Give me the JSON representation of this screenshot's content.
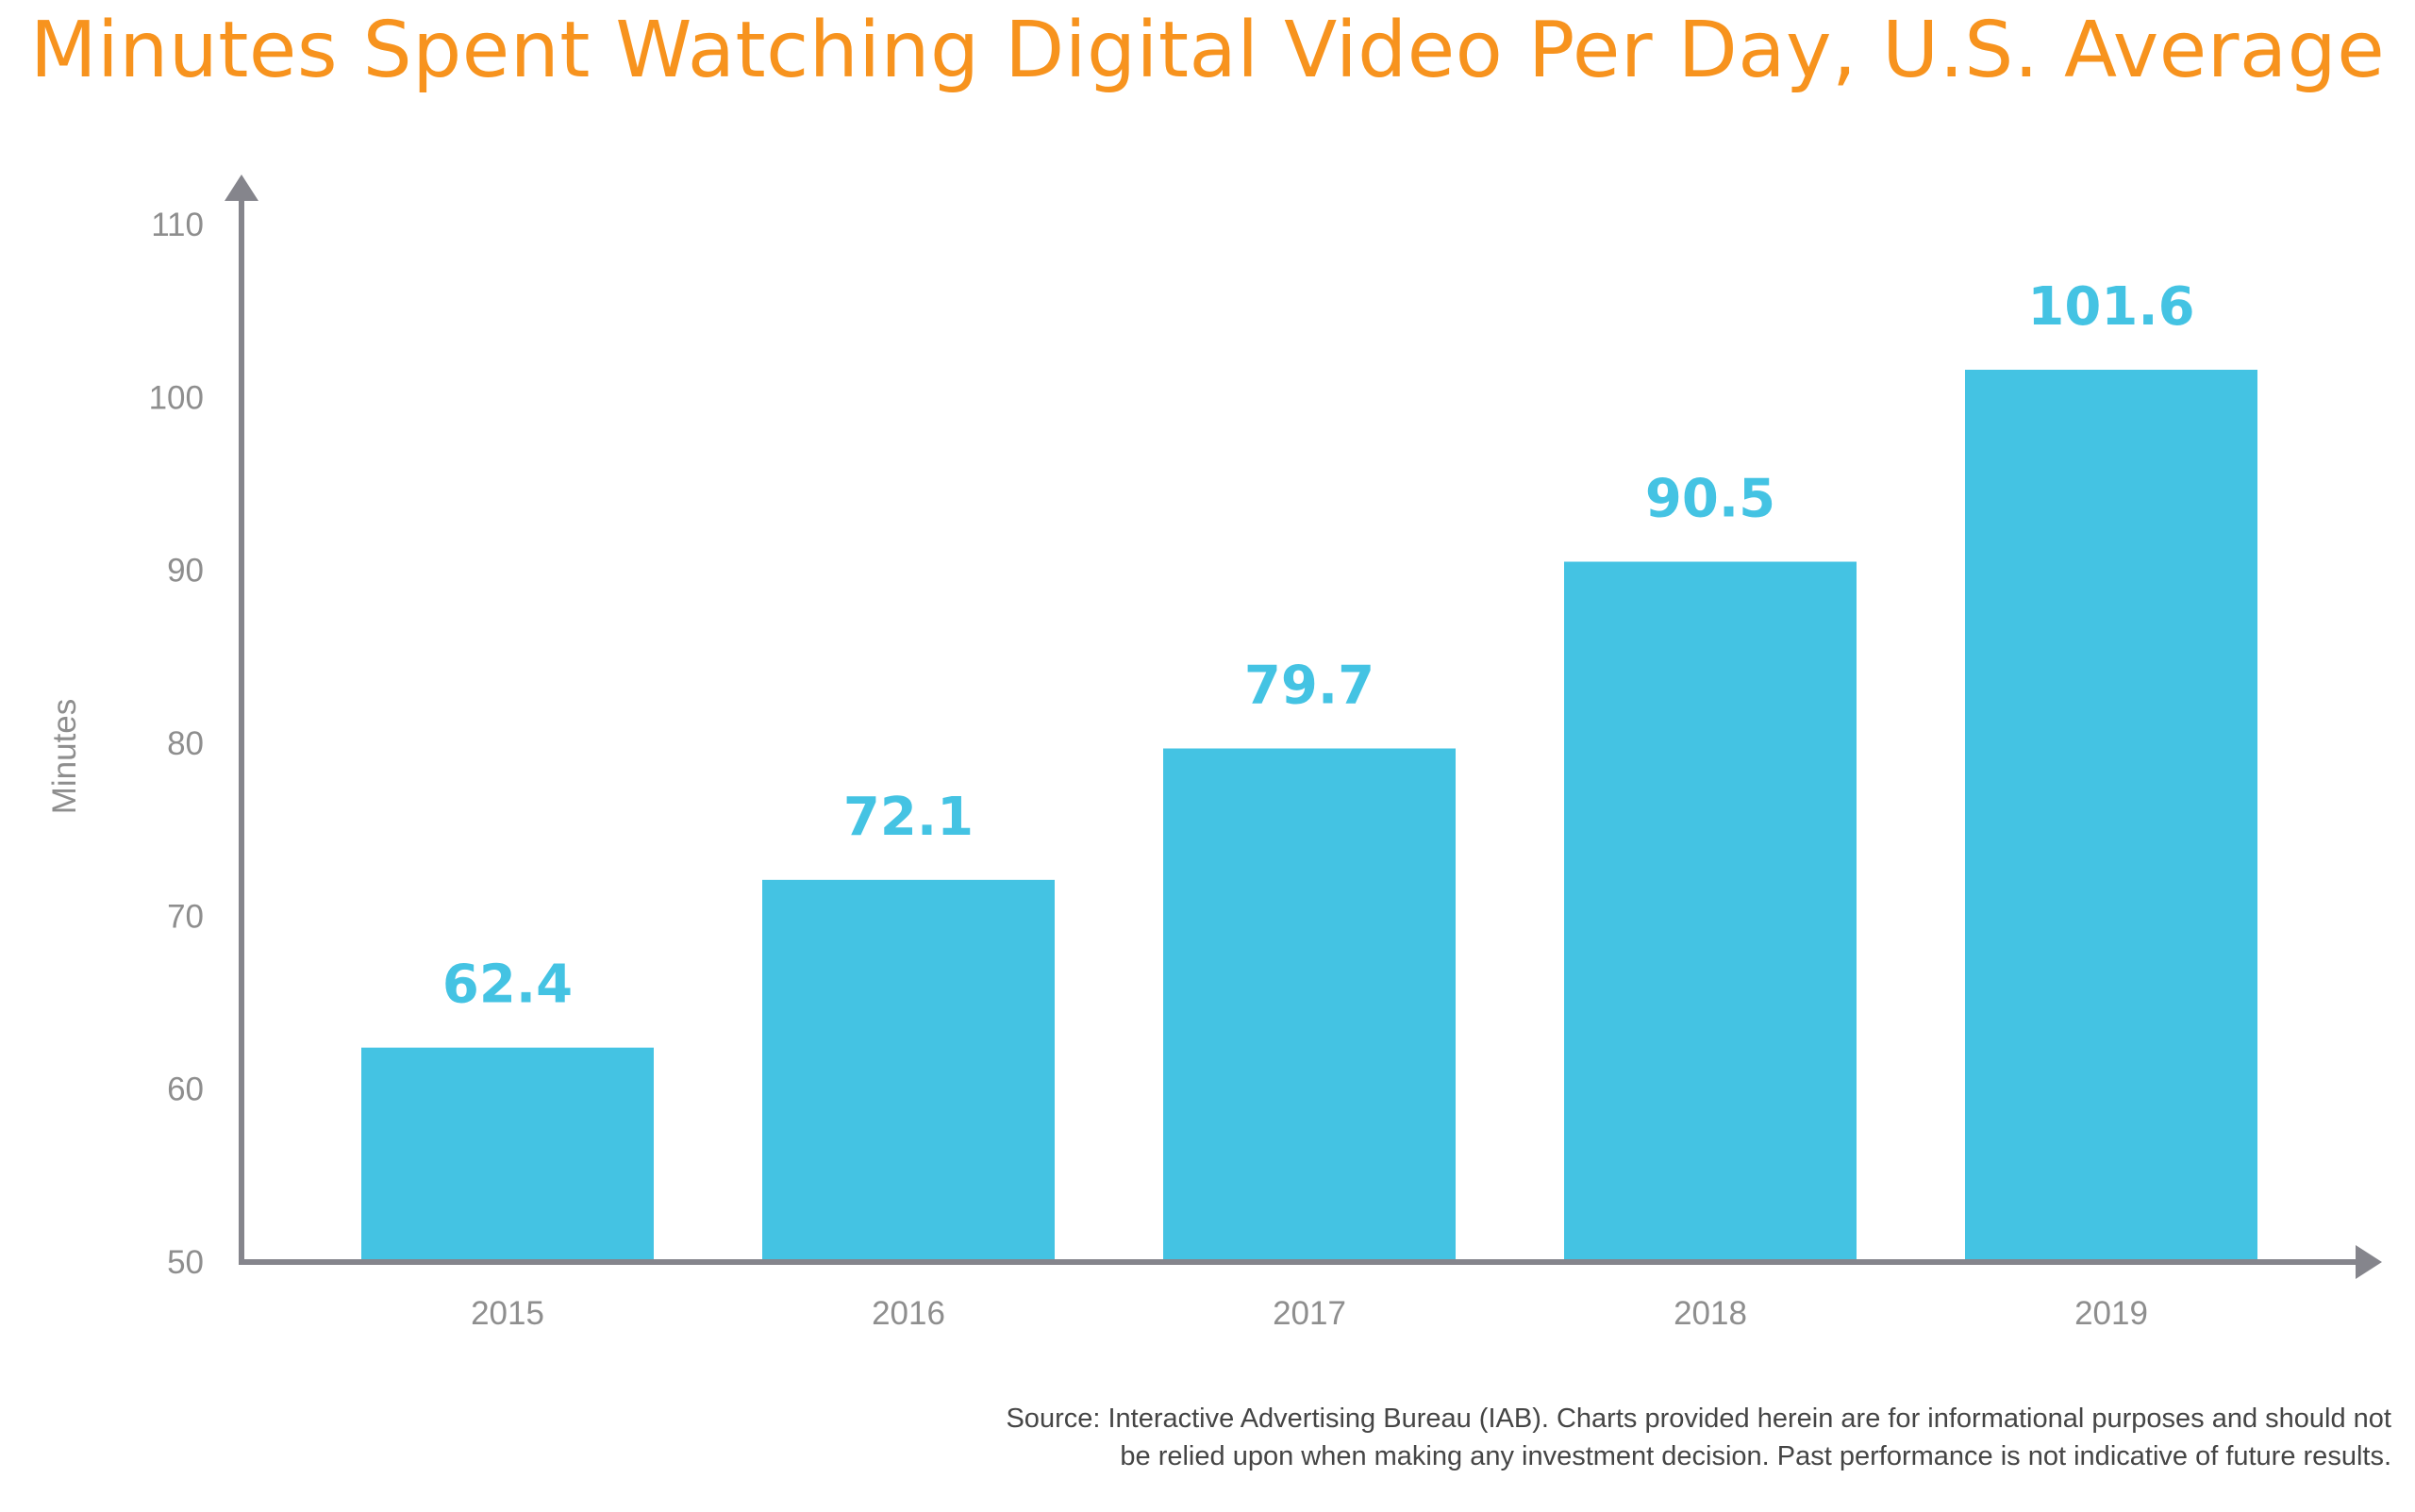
{
  "chart_data": {
    "type": "bar",
    "title": "Minutes Spent Watching Digital Video Per Day, U.S. Average",
    "categories": [
      "2015",
      "2016",
      "2017",
      "2018",
      "2019"
    ],
    "values": [
      62.4,
      72.1,
      79.7,
      90.5,
      101.6
    ],
    "data_labels": [
      "62.4",
      "72.1",
      "79.7",
      "90.5",
      "101.6"
    ],
    "xlabel": "",
    "ylabel": "Minutes",
    "ylim": [
      50,
      110
    ],
    "yticks": [
      50,
      60,
      70,
      80,
      90,
      100,
      110
    ],
    "grid": false,
    "legend": "none"
  },
  "source_note": {
    "line1": "Source: Interactive Advertising Bureau (IAB). Charts provided herein are for informational purposes and should not",
    "line2": "be relied upon when making any investment decision. Past performance is not indicative of future results."
  },
  "colors": {
    "title": "#F7931E",
    "bar": "#44C3E3",
    "data_label": "#44C3E3",
    "axis": "#85858C",
    "tick_text": "#8E8E8E",
    "source_text": "#454545"
  }
}
